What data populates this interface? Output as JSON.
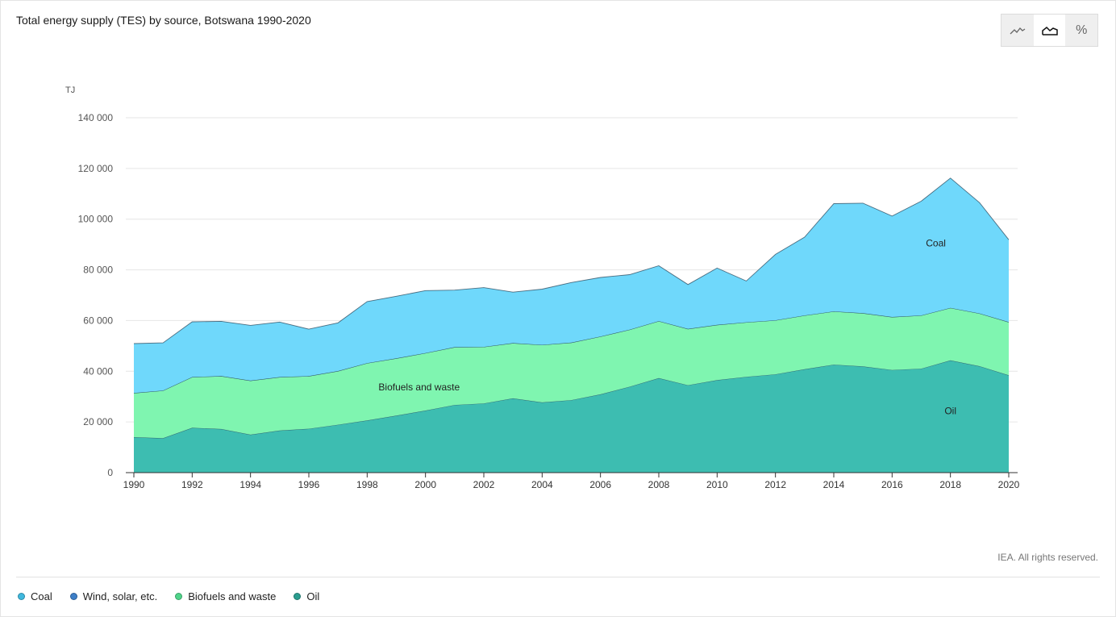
{
  "title": "Total energy supply (TES) by source, Botswana 1990-2020",
  "toggle": {
    "buttons": [
      {
        "name": "line-chart-toggle",
        "icon": "line-chart-icon",
        "active": false
      },
      {
        "name": "area-chart-toggle",
        "icon": "area-chart-icon",
        "active": true
      },
      {
        "name": "percent-toggle",
        "icon": "percent-icon",
        "active": false,
        "glyph": "%"
      }
    ]
  },
  "credit": "IEA. All rights reserved.",
  "legend": [
    {
      "label": "Coal",
      "color": "#3fb8de"
    },
    {
      "label": "Wind, solar, etc.",
      "color": "#3d7fc8"
    },
    {
      "label": "Biofuels and waste",
      "color": "#4fd48a"
    },
    {
      "label": "Oil",
      "color": "#2a9d8f"
    }
  ],
  "chart_data": {
    "type": "area",
    "stacked": true,
    "ylabel": "TJ",
    "ylim": [
      0,
      140000
    ],
    "yticks": [
      0,
      20000,
      40000,
      60000,
      80000,
      100000,
      120000,
      140000
    ],
    "ytick_labels": [
      "0",
      "20 000",
      "40 000",
      "60 000",
      "80 000",
      "100 000",
      "120 000",
      "140 000"
    ],
    "xticks": [
      1990,
      1992,
      1994,
      1996,
      1998,
      2000,
      2002,
      2004,
      2006,
      2008,
      2010,
      2012,
      2014,
      2016,
      2018,
      2020
    ],
    "xtick_labels": [
      "1990",
      "1992",
      "1994",
      "1996",
      "1998",
      "2000",
      "2002",
      "2004",
      "2006",
      "2008",
      "2010",
      "2012",
      "2014",
      "2016",
      "2018",
      "2020"
    ],
    "grid": true,
    "x": [
      1990,
      1991,
      1992,
      1993,
      1994,
      1995,
      1996,
      1997,
      1998,
      1999,
      2000,
      2001,
      2002,
      2003,
      2004,
      2005,
      2006,
      2007,
      2008,
      2009,
      2010,
      2011,
      2012,
      2013,
      2014,
      2015,
      2016,
      2017,
      2018,
      2019,
      2020
    ],
    "series": [
      {
        "name": "Oil",
        "color": "#3dbdb1",
        "label": "Oil",
        "values": [
          14000,
          13600,
          17700,
          17200,
          15000,
          16600,
          17300,
          18900,
          20600,
          22500,
          24500,
          26700,
          27300,
          29300,
          27700,
          28600,
          30900,
          33900,
          37300,
          34500,
          36500,
          37800,
          38800,
          40800,
          42600,
          41900,
          40500,
          41000,
          44300,
          42000,
          38400
        ]
      },
      {
        "name": "Biofuels and waste",
        "color": "#7ff5b0",
        "label": "Biofuels and waste",
        "values": [
          17400,
          18800,
          20000,
          20900,
          21300,
          21100,
          20800,
          21200,
          22600,
          22600,
          22700,
          22800,
          22300,
          21800,
          22700,
          22700,
          22800,
          22500,
          22500,
          22200,
          21800,
          21500,
          21300,
          21200,
          21000,
          21000,
          20900,
          21000,
          20700,
          20800,
          21000
        ]
      },
      {
        "name": "Wind, solar, etc.",
        "color": "#3d7fc8",
        "label": "",
        "values": [
          0,
          0,
          0,
          0,
          0,
          0,
          0,
          0,
          0,
          0,
          0,
          0,
          0,
          0,
          0,
          0,
          0,
          0,
          0,
          0,
          0,
          0,
          0,
          0,
          0,
          0,
          0,
          0,
          0,
          0,
          0
        ]
      },
      {
        "name": "Coal",
        "color": "#6fd8fb",
        "label": "Coal",
        "values": [
          19500,
          18800,
          21800,
          21600,
          21800,
          21700,
          18500,
          19000,
          24300,
          24500,
          24600,
          22500,
          23400,
          20100,
          22000,
          23700,
          23300,
          21700,
          21800,
          17500,
          22400,
          16300,
          26000,
          30900,
          42500,
          43400,
          39800,
          45100,
          51200,
          43700,
          32500
        ]
      }
    ]
  }
}
